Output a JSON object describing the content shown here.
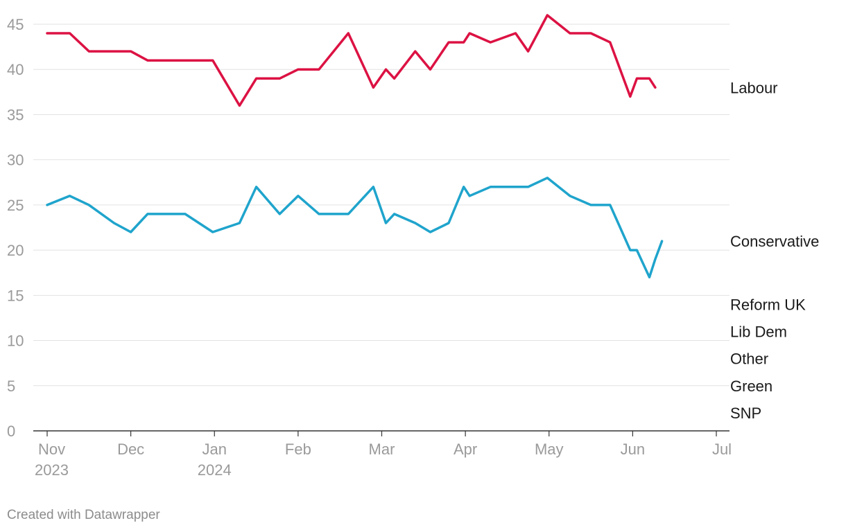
{
  "chart_data": {
    "type": "line",
    "title": "",
    "xlabel": "",
    "ylabel": "",
    "ylim": [
      0,
      45
    ],
    "yticks": [
      0,
      5,
      10,
      15,
      20,
      25,
      30,
      35,
      40,
      45
    ],
    "xlim_months": [
      0,
      8
    ],
    "xticks": [
      {
        "month": 0,
        "label": "Nov",
        "sub": "2023"
      },
      {
        "month": 1,
        "label": "Dec",
        "sub": ""
      },
      {
        "month": 2,
        "label": "Jan",
        "sub": "2024"
      },
      {
        "month": 3,
        "label": "Feb",
        "sub": ""
      },
      {
        "month": 4,
        "label": "Mar",
        "sub": ""
      },
      {
        "month": 5,
        "label": "Apr",
        "sub": ""
      },
      {
        "month": 6,
        "label": "May",
        "sub": ""
      },
      {
        "month": 7,
        "label": "Jun",
        "sub": ""
      },
      {
        "month": 8,
        "label": "Jul",
        "sub": ""
      }
    ],
    "x": [
      0.0,
      0.27,
      0.5,
      0.8,
      1.0,
      1.2,
      1.45,
      1.65,
      1.98,
      2.3,
      2.5,
      2.78,
      3.0,
      3.25,
      3.6,
      3.9,
      4.05,
      4.15,
      4.4,
      4.58,
      4.8,
      4.98,
      5.05,
      5.3,
      5.6,
      5.75,
      5.98,
      6.25,
      6.5,
      6.73,
      6.97,
      7.05,
      7.2,
      7.27,
      7.35,
      7.45,
      7.55,
      7.63,
      7.78,
      7.93,
      8.0
    ],
    "series": [
      {
        "name": "Labour",
        "color": "#dc1243",
        "values": [
          44,
          44,
          42,
          42,
          42,
          41,
          41,
          41,
          41,
          36,
          39,
          39,
          40,
          40,
          44,
          38,
          40,
          39,
          42,
          40,
          43,
          43,
          44,
          43,
          44,
          42,
          46,
          44,
          44,
          43,
          37,
          39,
          39,
          38,
          null,
          null,
          null,
          null,
          null,
          null,
          null
        ],
        "label_y": 38
      },
      {
        "name": "Conservative",
        "color": "#1fa4cc",
        "values": [
          25,
          26,
          25,
          23,
          22,
          24,
          24,
          24,
          22,
          23,
          27,
          24,
          26,
          24,
          24,
          27,
          23,
          24,
          23,
          22,
          23,
          27,
          26,
          27,
          27,
          27,
          28,
          26,
          25,
          25,
          20,
          20,
          17,
          19,
          21,
          null,
          null,
          null,
          null,
          null,
          null
        ],
        "label_y": 21
      }
    ],
    "legend": [
      "Labour",
      "Conservative",
      "Reform UK",
      "Lib Dem",
      "Other",
      "Green",
      "SNP"
    ]
  },
  "footer": "Created with Datawrapper"
}
